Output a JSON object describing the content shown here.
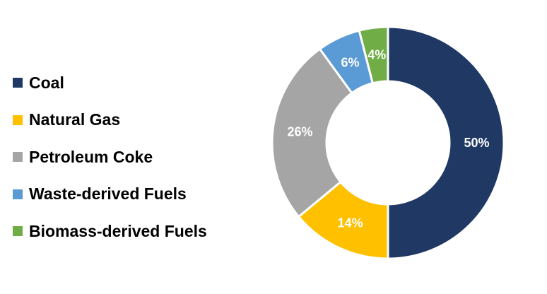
{
  "chart_data": {
    "type": "pie",
    "variant": "donut",
    "title": "",
    "legend_position": "left",
    "categories": [
      "Coal",
      "Natural Gas",
      "Petroleum Coke",
      "Waste-derived Fuels",
      "Biomass-derived Fuels"
    ],
    "values": [
      50,
      14,
      26,
      6,
      4
    ],
    "unit": "%",
    "data_labels": [
      "50%",
      "14%",
      "26%",
      "6%",
      "4%"
    ],
    "colors": [
      "#203864",
      "#FFC000",
      "#A5A5A5",
      "#5B9BD5",
      "#70AD47"
    ]
  }
}
